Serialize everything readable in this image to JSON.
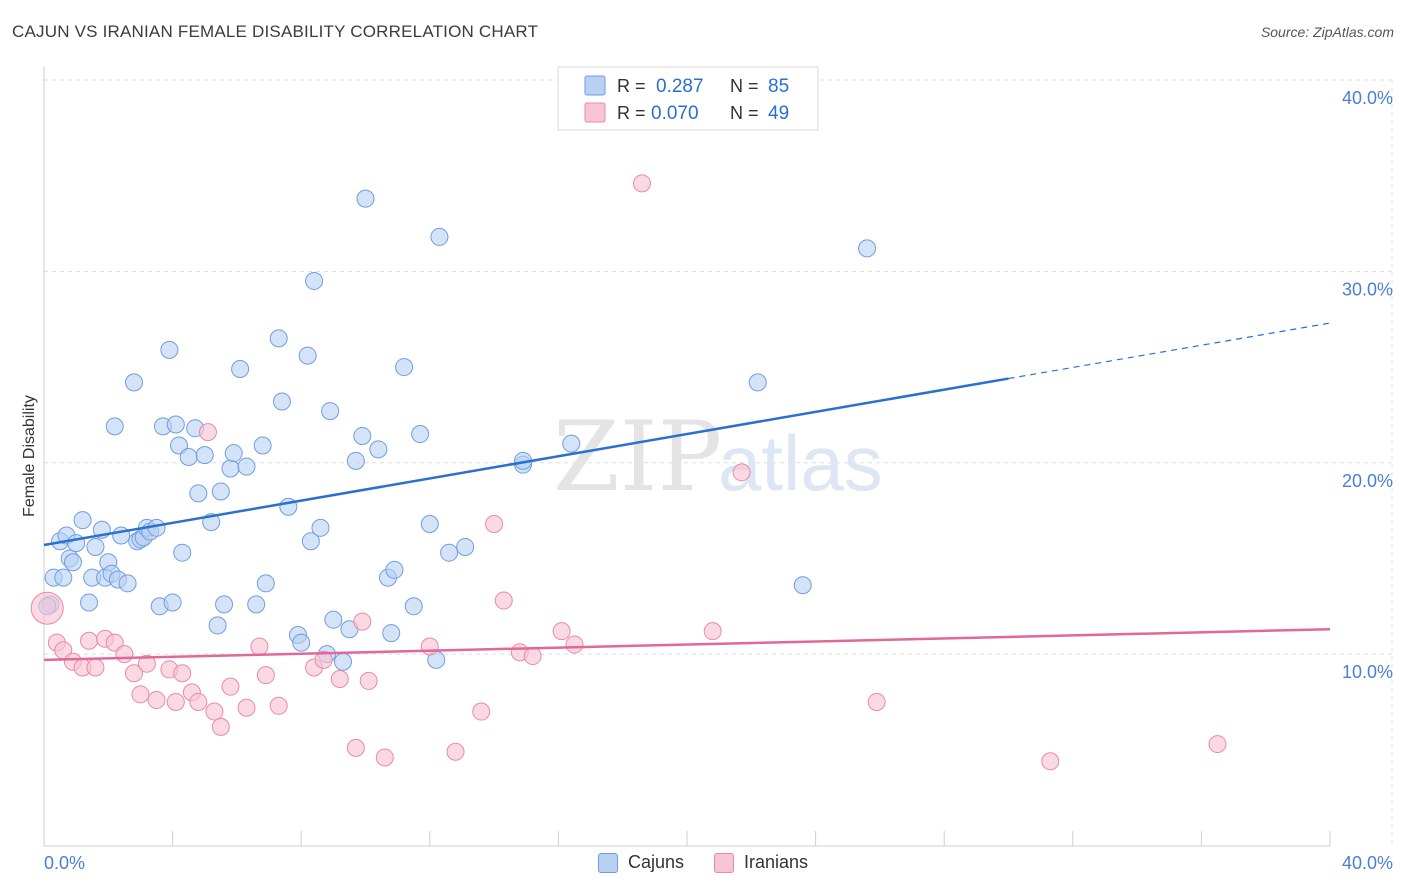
{
  "header": {
    "title": "CAJUN VS IRANIAN FEMALE DISABILITY CORRELATION CHART",
    "source": "Source: ZipAtlas.com"
  },
  "watermark": {
    "zip": "ZIP",
    "atlas": "atlas"
  },
  "stats_legend": [
    {
      "r_label": "R =",
      "r_value": "0.287",
      "n_label": "N =",
      "n_value": "85"
    },
    {
      "r_label": "R =",
      "r_value": "0.070",
      "n_label": "N =",
      "n_value": "49"
    }
  ],
  "bottom_legend": [
    {
      "label": "Cajuns"
    },
    {
      "label": "Iranians"
    }
  ],
  "colors": {
    "cajun_fill": "#b8d0f2",
    "cajun_stroke": "#6f9ee0",
    "cajun_line": "#2a6fd1",
    "iranian_fill": "#f8c5d4",
    "iranian_stroke": "#e98aa6",
    "iranian_line": "#e2679a",
    "axis_label": "#4a7fd4",
    "grid": "#dddddd"
  },
  "chart_data": {
    "type": "scatter",
    "title": "CAJUN VS IRANIAN FEMALE DISABILITY CORRELATION CHART",
    "xlabel": "",
    "ylabel": "Female Disability",
    "xlim": [
      0,
      40
    ],
    "ylim": [
      0,
      40
    ],
    "x_tick_labels": [
      "0.0%",
      "40.0%"
    ],
    "y_ticks": [
      10,
      20,
      30,
      40
    ],
    "y_tick_labels": [
      "10.0%",
      "20.0%",
      "30.0%",
      "40.0%"
    ],
    "grid": "horizontal dashed",
    "series": [
      {
        "name": "Cajuns",
        "r": 0.287,
        "n": 85,
        "trend": {
          "x0": 0,
          "y0": 15.7,
          "x1": 30.0,
          "y1": 24.4,
          "dash_to_x": 40.0,
          "dash_to_y": 27.3
        },
        "points": [
          [
            0.2,
            12.6
          ],
          [
            0.3,
            14.0
          ],
          [
            0.5,
            15.9
          ],
          [
            0.6,
            14.0
          ],
          [
            0.7,
            16.2
          ],
          [
            0.8,
            15.0
          ],
          [
            0.9,
            14.8
          ],
          [
            1.0,
            15.8
          ],
          [
            1.2,
            17.0
          ],
          [
            1.4,
            12.7
          ],
          [
            1.5,
            14.0
          ],
          [
            1.6,
            15.6
          ],
          [
            1.8,
            16.5
          ],
          [
            1.9,
            14.0
          ],
          [
            2.0,
            14.8
          ],
          [
            2.1,
            14.2
          ],
          [
            2.2,
            21.9
          ],
          [
            2.3,
            13.9
          ],
          [
            2.4,
            16.2
          ],
          [
            2.6,
            13.7
          ],
          [
            2.8,
            24.2
          ],
          [
            2.9,
            15.9
          ],
          [
            3.0,
            16.0
          ],
          [
            3.1,
            16.1
          ],
          [
            3.2,
            16.6
          ],
          [
            3.3,
            16.4
          ],
          [
            3.5,
            16.6
          ],
          [
            3.6,
            12.5
          ],
          [
            3.7,
            21.9
          ],
          [
            3.9,
            25.9
          ],
          [
            4.0,
            12.7
          ],
          [
            4.1,
            22.0
          ],
          [
            4.2,
            20.9
          ],
          [
            4.3,
            15.3
          ],
          [
            4.5,
            20.3
          ],
          [
            4.7,
            21.8
          ],
          [
            4.8,
            18.4
          ],
          [
            5.0,
            20.4
          ],
          [
            5.2,
            16.9
          ],
          [
            5.4,
            11.5
          ],
          [
            5.5,
            18.5
          ],
          [
            5.6,
            12.6
          ],
          [
            5.8,
            19.7
          ],
          [
            5.9,
            20.5
          ],
          [
            6.1,
            24.9
          ],
          [
            6.3,
            19.8
          ],
          [
            6.6,
            12.6
          ],
          [
            6.8,
            20.9
          ],
          [
            6.9,
            13.7
          ],
          [
            7.3,
            26.5
          ],
          [
            7.4,
            23.2
          ],
          [
            7.6,
            17.7
          ],
          [
            7.9,
            11.0
          ],
          [
            8.0,
            10.6
          ],
          [
            8.2,
            25.6
          ],
          [
            8.3,
            15.9
          ],
          [
            8.4,
            29.5
          ],
          [
            8.6,
            16.6
          ],
          [
            8.8,
            10.0
          ],
          [
            8.9,
            22.7
          ],
          [
            9.0,
            11.8
          ],
          [
            9.3,
            9.6
          ],
          [
            9.5,
            11.3
          ],
          [
            9.7,
            20.1
          ],
          [
            9.9,
            21.4
          ],
          [
            10.0,
            33.8
          ],
          [
            10.4,
            20.7
          ],
          [
            10.7,
            14.0
          ],
          [
            10.8,
            11.1
          ],
          [
            10.9,
            14.4
          ],
          [
            11.2,
            25.0
          ],
          [
            11.5,
            12.5
          ],
          [
            11.7,
            21.5
          ],
          [
            12.0,
            16.8
          ],
          [
            12.2,
            9.7
          ],
          [
            12.3,
            31.8
          ],
          [
            12.6,
            15.3
          ],
          [
            13.1,
            15.6
          ],
          [
            14.9,
            19.9
          ],
          [
            14.9,
            20.1
          ],
          [
            16.4,
            21.0
          ],
          [
            22.2,
            24.2
          ],
          [
            23.6,
            13.6
          ],
          [
            25.6,
            31.2
          ],
          [
            0.1,
            12.5
          ]
        ]
      },
      {
        "name": "Iranians",
        "r": 0.07,
        "n": 49,
        "trend": {
          "x0": 0,
          "y0": 9.7,
          "x1": 40.0,
          "y1": 11.3
        },
        "points": [
          [
            0.1,
            12.4
          ],
          [
            0.4,
            10.6
          ],
          [
            0.6,
            10.2
          ],
          [
            0.9,
            9.6
          ],
          [
            1.2,
            9.3
          ],
          [
            1.4,
            10.7
          ],
          [
            1.6,
            9.3
          ],
          [
            1.9,
            10.8
          ],
          [
            2.2,
            10.6
          ],
          [
            2.5,
            10.0
          ],
          [
            2.8,
            9.0
          ],
          [
            3.0,
            7.9
          ],
          [
            3.2,
            9.5
          ],
          [
            3.5,
            7.6
          ],
          [
            3.9,
            9.2
          ],
          [
            4.1,
            7.5
          ],
          [
            4.3,
            9.0
          ],
          [
            4.6,
            8.0
          ],
          [
            4.8,
            7.5
          ],
          [
            5.1,
            21.6
          ],
          [
            5.3,
            7.0
          ],
          [
            5.5,
            6.2
          ],
          [
            5.8,
            8.3
          ],
          [
            6.3,
            7.2
          ],
          [
            6.7,
            10.4
          ],
          [
            6.9,
            8.9
          ],
          [
            7.3,
            7.3
          ],
          [
            8.4,
            9.3
          ],
          [
            8.7,
            9.7
          ],
          [
            9.2,
            8.7
          ],
          [
            9.7,
            5.1
          ],
          [
            9.9,
            11.7
          ],
          [
            10.1,
            8.6
          ],
          [
            10.6,
            4.6
          ],
          [
            12.0,
            10.4
          ],
          [
            12.8,
            4.9
          ],
          [
            13.6,
            7.0
          ],
          [
            14.0,
            16.8
          ],
          [
            14.3,
            12.8
          ],
          [
            14.8,
            10.1
          ],
          [
            15.2,
            9.9
          ],
          [
            16.1,
            11.2
          ],
          [
            16.5,
            10.5
          ],
          [
            18.6,
            34.6
          ],
          [
            20.8,
            11.2
          ],
          [
            21.7,
            19.5
          ],
          [
            25.9,
            7.5
          ],
          [
            31.3,
            4.4
          ],
          [
            36.5,
            5.3
          ]
        ]
      }
    ]
  }
}
